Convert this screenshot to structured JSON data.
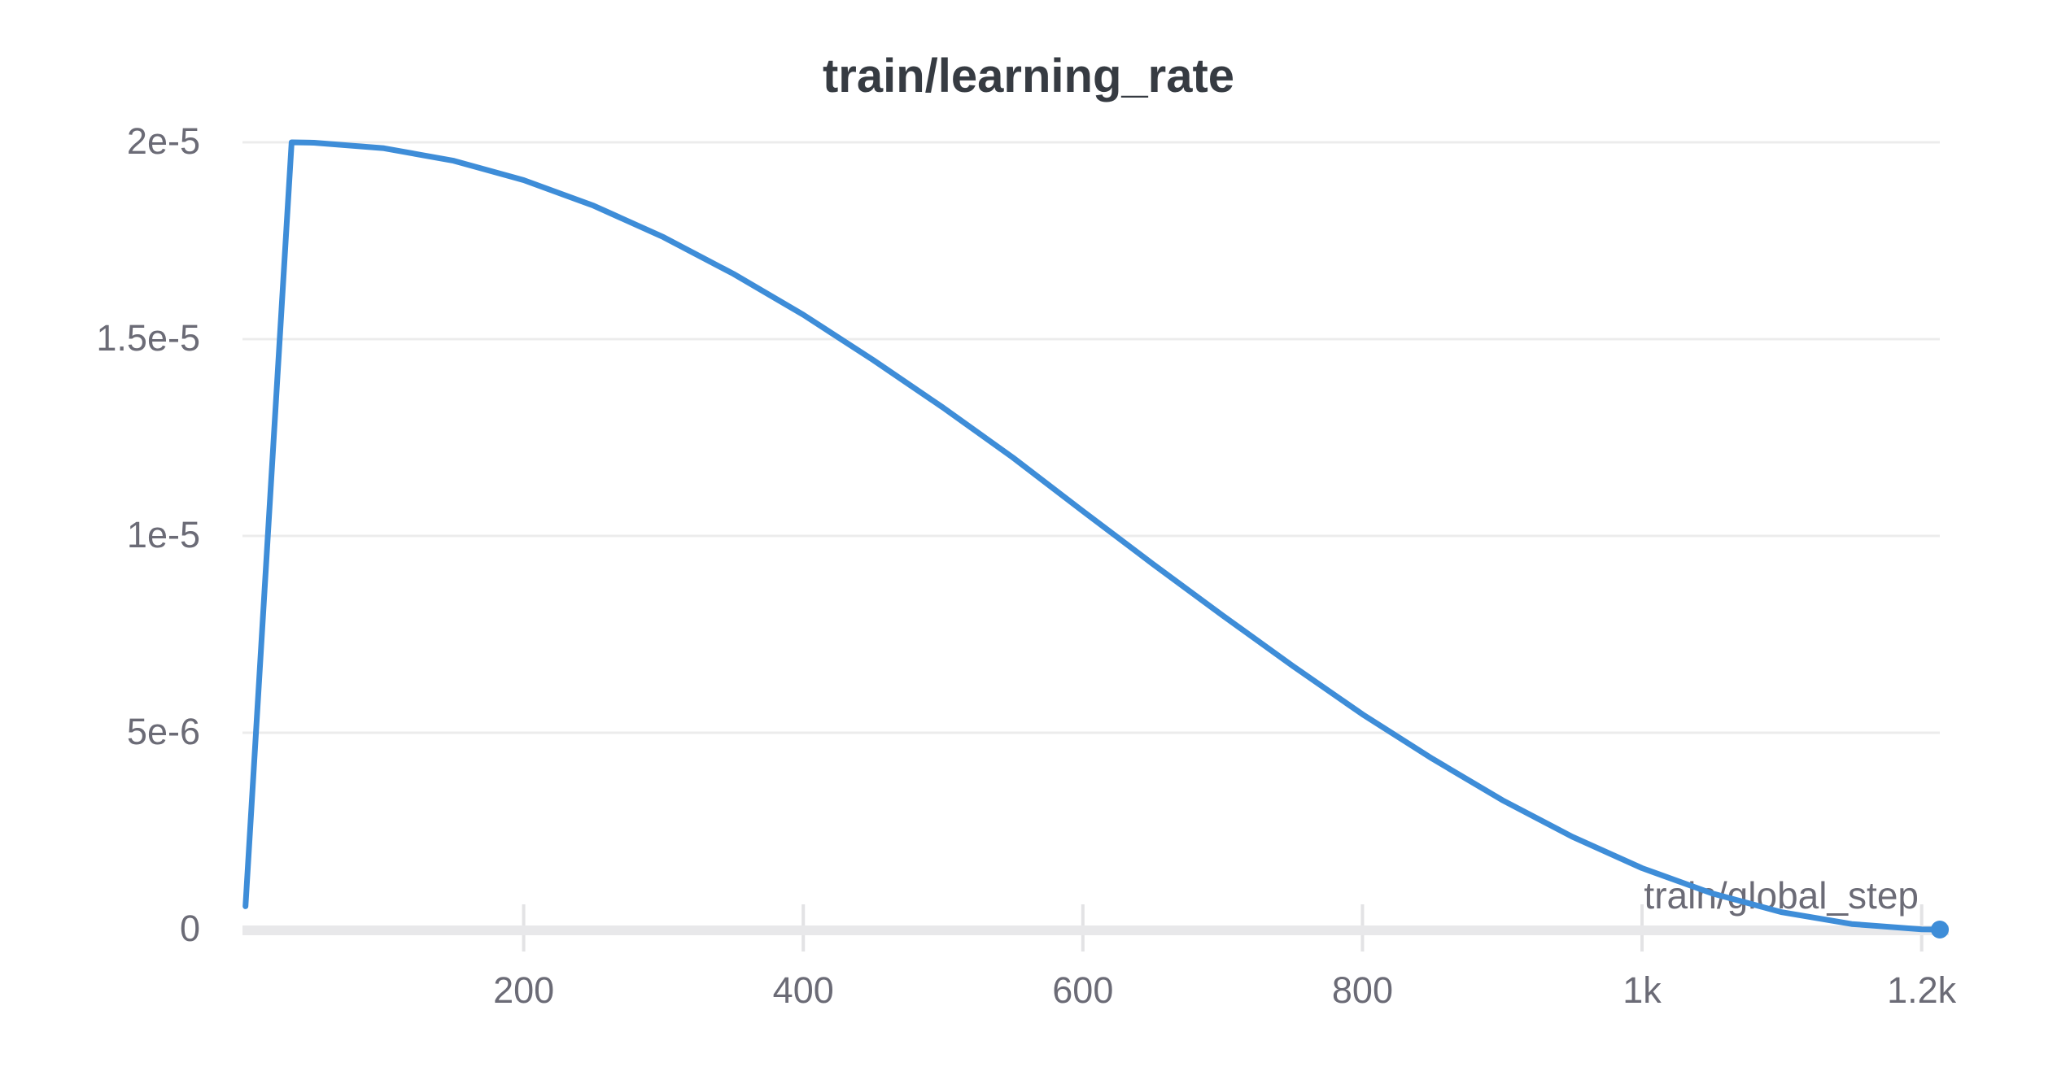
{
  "chart_data": {
    "type": "line",
    "title": "train/learning_rate",
    "xlabel": "train/global_step",
    "ylabel": "",
    "xlim": [
      0,
      1213
    ],
    "ylim": [
      0,
      2e-05
    ],
    "grid": "horizontal-only",
    "legend": "none",
    "x_ticks": [
      {
        "value": 200,
        "label": "200"
      },
      {
        "value": 400,
        "label": "400"
      },
      {
        "value": 600,
        "label": "600"
      },
      {
        "value": 800,
        "label": "800"
      },
      {
        "value": 1000,
        "label": "1k"
      },
      {
        "value": 1200,
        "label": "1.2k"
      }
    ],
    "y_ticks": [
      {
        "value": 0,
        "label": "0"
      },
      {
        "value": 5e-06,
        "label": "5e-6"
      },
      {
        "value": 1e-05,
        "label": "1e-5"
      },
      {
        "value": 1.5e-05,
        "label": "1.5e-5"
      },
      {
        "value": 2e-05,
        "label": "2e-5"
      }
    ],
    "colors": {
      "line": "#3e8dd8",
      "grid": "#ececec",
      "axis_bar": "#e8e8ea",
      "tick_mark": "#e3e3e5",
      "tick_text": "#6b6b76",
      "title_text": "#363b42",
      "background": "#ffffff"
    },
    "series": [
      {
        "name": "train/learning_rate",
        "color": "#3e8dd8",
        "shape_note": "linear warmup from ~6e-7 at step 1 to 2e-5 at step ~34, then cosine decay to 0 at step ~1213",
        "end_marker": true,
        "points": [
          [
            1,
            5.9e-07
          ],
          [
            10,
            5.9e-06
          ],
          [
            20,
            1.18e-05
          ],
          [
            34,
            2e-05
          ],
          [
            50,
            1.999e-05
          ],
          [
            100,
            1.985e-05
          ],
          [
            150,
            1.953e-05
          ],
          [
            200,
            1.904e-05
          ],
          [
            250,
            1.839e-05
          ],
          [
            300,
            1.759e-05
          ],
          [
            350,
            1.666e-05
          ],
          [
            400,
            1.562e-05
          ],
          [
            450,
            1.447e-05
          ],
          [
            500,
            1.326e-05
          ],
          [
            550,
            1.199e-05
          ],
          [
            600,
            1.063e-05
          ],
          [
            650,
            9.29e-06
          ],
          [
            700,
            7.98e-06
          ],
          [
            750,
            6.7e-06
          ],
          [
            800,
            5.47e-06
          ],
          [
            850,
            4.34e-06
          ],
          [
            900,
            3.29e-06
          ],
          [
            950,
            2.36e-06
          ],
          [
            1000,
            1.56e-06
          ],
          [
            1050,
            9.2e-07
          ],
          [
            1100,
            4.4e-07
          ],
          [
            1150,
            1.4e-07
          ],
          [
            1200,
            6e-09
          ],
          [
            1213,
            0
          ]
        ]
      }
    ]
  }
}
